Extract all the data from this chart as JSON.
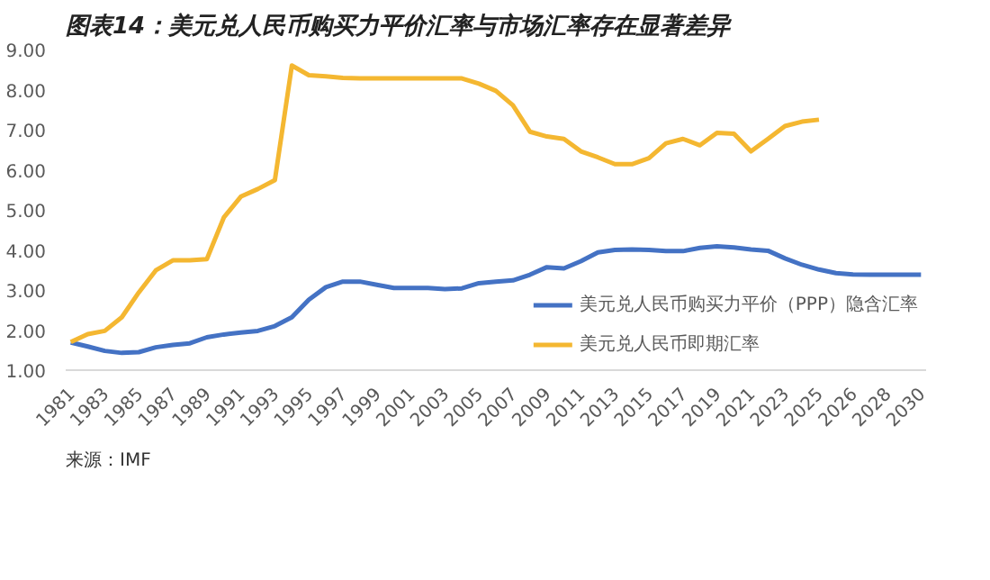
{
  "chart_data": {
    "type": "line",
    "title": "图表14：美元兑人民币购买力平价汇率与市场汇率存在显著差异",
    "categories": [
      "1981",
      null,
      "1983",
      null,
      "1985",
      null,
      "1987",
      null,
      "1989",
      null,
      "1991",
      null,
      "1993",
      null,
      "1995",
      null,
      "1997",
      null,
      "1999",
      null,
      "2001",
      null,
      "2003",
      null,
      "2005",
      null,
      "2007",
      null,
      "2009",
      null,
      "2011",
      null,
      "2013",
      null,
      "2015",
      null,
      "2017",
      null,
      "2019",
      null,
      "2021",
      null,
      "2023",
      null,
      "2025",
      null,
      "2026",
      null,
      "2028",
      null,
      "2030"
    ],
    "series": [
      {
        "name": "美元兑人民币购买力平价（PPP）隐含汇率",
        "color": "#4472c4",
        "values": [
          1.69,
          1.59,
          1.48,
          1.43,
          1.45,
          1.57,
          1.63,
          1.67,
          1.82,
          1.89,
          1.94,
          1.98,
          2.1,
          2.32,
          2.76,
          3.07,
          3.21,
          3.21,
          3.13,
          3.05,
          3.05,
          3.05,
          3.02,
          3.04,
          3.17,
          3.21,
          3.24,
          3.38,
          3.57,
          3.54,
          3.72,
          3.94,
          4.0,
          4.01,
          4.0,
          3.97,
          3.97,
          4.05,
          4.09,
          4.06,
          4.01,
          3.98,
          3.79,
          3.63,
          3.51,
          3.42,
          3.39,
          3.38,
          3.38,
          3.38,
          3.38
        ]
      },
      {
        "name": "美元兑人民币即期汇率",
        "color": "#f4b731",
        "values": [
          1.7,
          1.9,
          1.98,
          2.32,
          2.94,
          3.49,
          3.74,
          3.74,
          3.77,
          4.81,
          5.33,
          5.52,
          5.74,
          8.6,
          8.36,
          8.33,
          8.29,
          8.28,
          8.28,
          8.28,
          8.28,
          8.28,
          8.28,
          8.28,
          8.15,
          7.97,
          7.61,
          6.95,
          6.83,
          6.77,
          6.46,
          6.31,
          6.14,
          6.14,
          6.29,
          6.66,
          6.77,
          6.61,
          6.92,
          6.9,
          6.46,
          6.77,
          7.09,
          7.2,
          7.25,
          null,
          null,
          null,
          null,
          null,
          null
        ]
      }
    ],
    "ylim": [
      1,
      9
    ],
    "yticks": [
      {
        "value": 1,
        "label": "1.00"
      },
      {
        "value": 2,
        "label": "2.00"
      },
      {
        "value": 3,
        "label": "3.00"
      },
      {
        "value": 4,
        "label": "4.00"
      },
      {
        "value": 5,
        "label": "5.00"
      },
      {
        "value": 6,
        "label": "6.00"
      },
      {
        "value": 7,
        "label": "7.00"
      },
      {
        "value": 8,
        "label": "8.00"
      },
      {
        "value": 9,
        "label": "9.00"
      }
    ],
    "grid": false,
    "legend": "bottom right",
    "annotations": [
      "来源：IMF"
    ]
  }
}
